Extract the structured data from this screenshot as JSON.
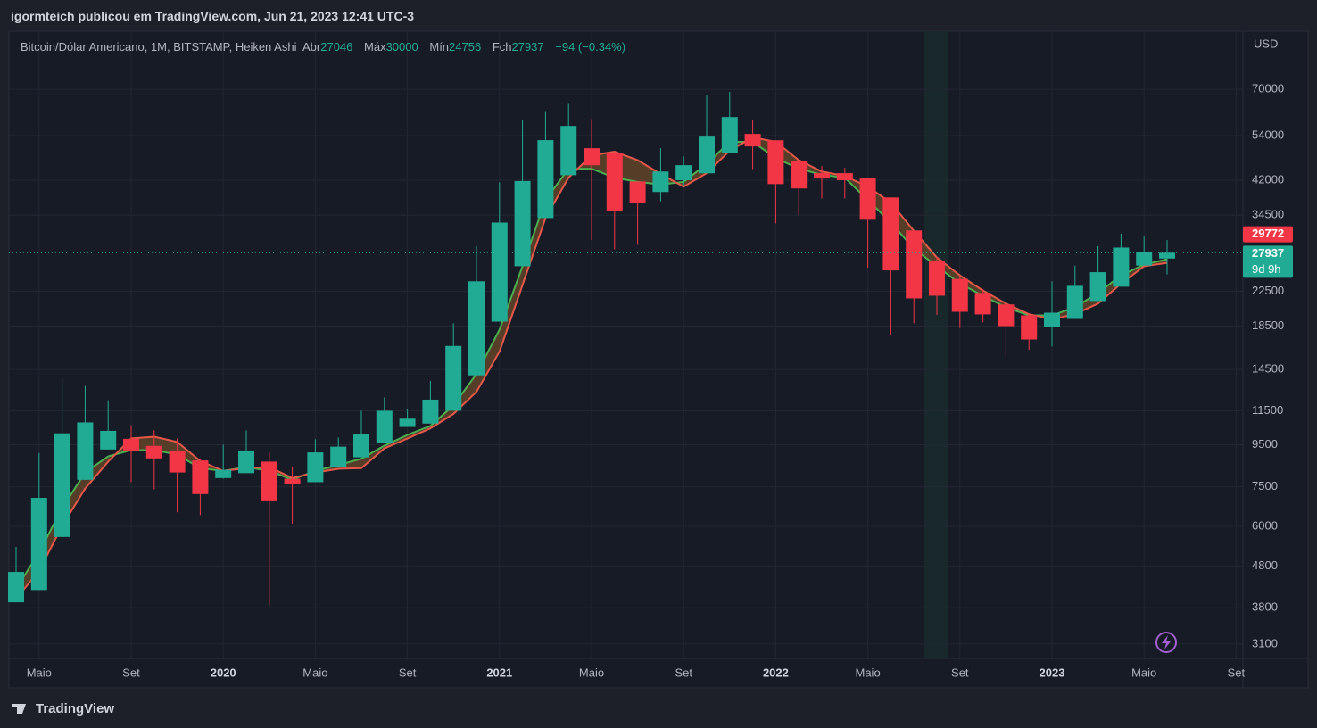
{
  "header": "igormteich publicou em TradingView.com, Jun 21, 2023 12:41 UTC-3",
  "footer": "TradingView",
  "chart_data": {
    "type": "candlestick",
    "title": "Bitcoin/Dólar Americano, 1M, BITSTAMP, Heiken Ashi",
    "legend_labels": {
      "open": "Abr",
      "high": "Máx",
      "low": "Mín",
      "close": "Fch"
    },
    "change_label": "−94 (−0.34%)",
    "axis_unit": "USD",
    "countdown": "9d 9h",
    "categories": [
      null,
      "Maio",
      null,
      null,
      null,
      "Set",
      null,
      null,
      null,
      "2020",
      null,
      null,
      null,
      "Maio",
      null,
      null,
      null,
      "Set",
      null,
      null,
      null,
      "2021",
      null,
      null,
      null,
      "Maio",
      null,
      null,
      null,
      "Set",
      null,
      null,
      null,
      "2022",
      null,
      null,
      null,
      "Maio",
      null,
      null,
      null,
      "Set",
      null,
      null,
      null,
      "2023",
      null,
      null,
      null,
      "Maio",
      null,
      null,
      null,
      "Set"
    ],
    "open": [
      3920,
      4200,
      5660,
      7800,
      9250,
      9820,
      9440,
      9200,
      8700,
      7880,
      8100,
      8640,
      7850,
      7700,
      8380,
      8850,
      9600,
      10500,
      10700,
      11500,
      14030,
      18970,
      25900,
      33960,
      43200,
      50270,
      49020,
      41700,
      39300,
      42000,
      43660,
      49020,
      54470,
      52570,
      46830,
      43700,
      43700,
      42600,
      38120,
      31670,
      26700,
      24120,
      22300,
      20900,
      19650,
      18400,
      19260,
      21300,
      23090,
      26000,
      27046,
      null,
      null,
      null
    ],
    "high": [
      5350,
      9070,
      13840,
      13220,
      12200,
      10600,
      10300,
      9850,
      8800,
      9500,
      10300,
      9100,
      8400,
      9800,
      9900,
      11500,
      12400,
      11600,
      13600,
      18800,
      29000,
      41500,
      58900,
      61900,
      64500,
      59200,
      49020,
      41700,
      50300,
      48000,
      67600,
      69000,
      58900,
      52570,
      46830,
      45500,
      45000,
      42600,
      38120,
      31670,
      27300,
      24500,
      22800,
      21100,
      19900,
      23800,
      26000,
      29000,
      31100,
      30600,
      30000,
      null,
      null,
      null
    ],
    "low": [
      3920,
      4200,
      5660,
      7800,
      9250,
      7700,
      7400,
      6500,
      6400,
      7850,
      8100,
      3850,
      6100,
      7700,
      8380,
      8850,
      9600,
      10500,
      10700,
      11500,
      14030,
      18970,
      25900,
      33960,
      43200,
      30000,
      28480,
      29200,
      37300,
      40500,
      43660,
      49020,
      44700,
      32960,
      34500,
      37900,
      37900,
      25700,
      17600,
      18800,
      19700,
      18300,
      18900,
      15520,
      16200,
      16500,
      19260,
      21300,
      23090,
      26000,
      24756,
      null,
      null,
      null
    ],
    "close": [
      4650,
      7050,
      10130,
      10770,
      10270,
      9200,
      8800,
      8130,
      7200,
      8250,
      9200,
      6950,
      7600,
      9100,
      9400,
      10100,
      11500,
      11000,
      12240,
      16550,
      23800,
      33100,
      41800,
      52600,
      56960,
      45680,
      35350,
      36950,
      44100,
      45700,
      53650,
      59900,
      50780,
      41100,
      40100,
      42400,
      42000,
      33630,
      25300,
      21620,
      21950,
      20050,
      19760,
      18500,
      17160,
      19950,
      23200,
      25050,
      28770,
      28000,
      27937,
      null,
      null,
      null
    ],
    "up_color": "#22ab94",
    "down_color": "#f23645",
    "lines": [
      {
        "color": "#4caf50",
        "values": [
          4230,
          5190,
          6650,
          8130,
          8900,
          9220,
          9220,
          8990,
          8330,
          8200,
          8380,
          8200,
          7810,
          8200,
          8480,
          8780,
          9450,
          10040,
          10560,
          11850,
          14140,
          18130,
          25900,
          37570,
          44800,
          44800,
          42600,
          41600,
          41000,
          41600,
          46000,
          52100,
          52100,
          47600,
          44800,
          43300,
          42600,
          37600,
          33100,
          28600,
          25900,
          23500,
          21940,
          20560,
          19650,
          19650,
          20560,
          22300,
          24600,
          26140,
          26930,
          null,
          null,
          null
        ]
      },
      {
        "color": "#e8584a",
        "values": [
          3996,
          4680,
          6020,
          7430,
          8640,
          9840,
          9940,
          9650,
          8670,
          8200,
          8330,
          8380,
          7880,
          8130,
          8300,
          8330,
          9310,
          9840,
          10420,
          11300,
          12790,
          16030,
          23310,
          33980,
          42600,
          48300,
          49300,
          47000,
          43500,
          40500,
          43700,
          49590,
          53400,
          52100,
          47000,
          44100,
          43000,
          40500,
          37000,
          31600,
          27200,
          24600,
          22600,
          21000,
          19780,
          19240,
          19780,
          21000,
          23500,
          25900,
          26400,
          null,
          null,
          null
        ]
      }
    ],
    "fill_color": "#6b4a2a",
    "marker_label": {
      "value": 29772,
      "color": "#f23645"
    },
    "ylim": [
      2860,
      97000
    ],
    "log_scale": true,
    "yticks": [
      3100,
      3800,
      4800,
      6000,
      7500,
      9500,
      11500,
      14500,
      18500,
      22500,
      34500,
      42000,
      54000,
      70000
    ],
    "grid": true
  }
}
